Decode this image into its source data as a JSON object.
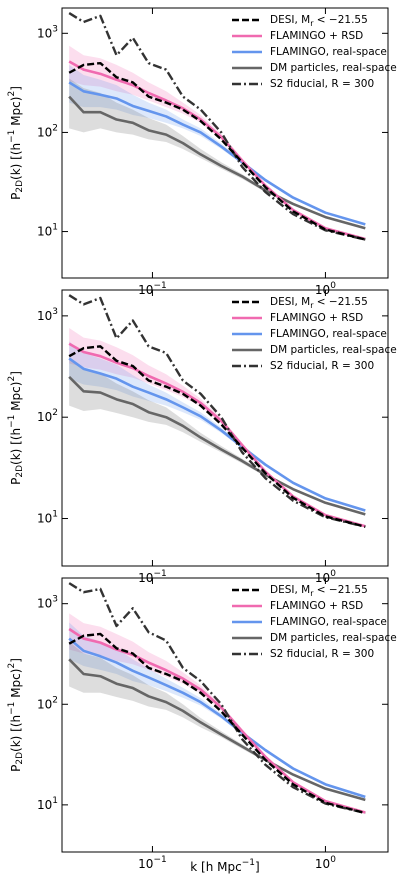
{
  "chart_data": [
    {
      "type": "line",
      "xscale": "log",
      "yscale": "log",
      "y_label": "P_{2D}(k) [(h^{−1} Mpc)^{2}]",
      "xlim": [
        0.03,
        2.3
      ],
      "ylim": [
        3.4,
        1800
      ],
      "xticks": [
        {
          "value": 0.1,
          "label": "10^{−1}"
        },
        {
          "value": 1,
          "label": "10^{0}"
        }
      ],
      "yticks": [
        {
          "value": 10,
          "label": "10^{1}"
        },
        {
          "value": 100,
          "label": "10^{2}"
        },
        {
          "value": 1000,
          "label": "10^{3}"
        }
      ],
      "x": [
        0.033,
        0.04,
        0.05,
        0.062,
        0.077,
        0.095,
        0.12,
        0.15,
        0.19,
        0.25,
        0.33,
        0.45,
        0.65,
        1.0,
        1.7
      ],
      "series": [
        {
          "name": "DESI, M_{r} < −21.55",
          "color": "#000000",
          "linestyle": "--",
          "values": [
            400,
            480,
            500,
            360,
            320,
            230,
            200,
            170,
            130,
            85,
            50,
            28,
            16,
            10.5,
            8.3
          ]
        },
        {
          "name": "FLAMINGO + RSD",
          "color": "#f06ab0",
          "linestyle": "-",
          "values": [
            520,
            430,
            390,
            340,
            300,
            250,
            210,
            175,
            135,
            90,
            52,
            29,
            16.5,
            10.8,
            8.4
          ],
          "lower": [
            330,
            300,
            290,
            260,
            240,
            210,
            180,
            155,
            125,
            85,
            50,
            28,
            16,
            10.5,
            8.2
          ],
          "upper": [
            750,
            600,
            560,
            480,
            400,
            320,
            260,
            200,
            150,
            97,
            55,
            30,
            17,
            11,
            8.6
          ]
        },
        {
          "name": "FLAMINGO, real-space",
          "color": "#6495ed",
          "linestyle": "-",
          "values": [
            320,
            260,
            240,
            220,
            185,
            165,
            145,
            120,
            100,
            72,
            50,
            33,
            22,
            15.5,
            11.8
          ],
          "lower": [
            200,
            180,
            180,
            170,
            150,
            140,
            125,
            110,
            92,
            68,
            48,
            32,
            21.5,
            15.2,
            11.6
          ],
          "upper": [
            480,
            380,
            340,
            300,
            240,
            200,
            170,
            135,
            110,
            77,
            52,
            34,
            22.5,
            15.8,
            12
          ]
        },
        {
          "name": "DM particles, real-space",
          "color": "#666666",
          "linestyle": "-",
          "values": [
            230,
            160,
            160,
            135,
            125,
            105,
            95,
            78,
            60,
            46,
            36,
            26,
            19,
            14,
            10.8
          ],
          "lower": [
            110,
            100,
            110,
            100,
            95,
            85,
            80,
            68,
            55,
            43,
            34,
            25,
            18.5,
            13.8,
            10.6
          ],
          "upper": [
            350,
            280,
            250,
            200,
            170,
            140,
            120,
            92,
            68,
            50,
            38,
            27,
            19.5,
            14.2,
            11
          ]
        },
        {
          "name": "S2 fiducial, R = 300",
          "color": "#333333",
          "linestyle": "-.",
          "values": [
            1600,
            1300,
            1500,
            600,
            900,
            500,
            430,
            230,
            170,
            100,
            45,
            25,
            15,
            10.3,
            8.3
          ]
        }
      ]
    },
    {
      "type": "line",
      "xscale": "log",
      "yscale": "log",
      "y_label": "P_{2D}(k) [(h^{−1} Mpc)^{2}]",
      "xlim": [
        0.03,
        2.3
      ],
      "ylim": [
        3.4,
        1800
      ],
      "xticks": [
        {
          "value": 0.1,
          "label": "10^{−1}"
        },
        {
          "value": 1,
          "label": "10^{0}"
        }
      ],
      "yticks": [
        {
          "value": 10,
          "label": "10^{1}"
        },
        {
          "value": 100,
          "label": "10^{2}"
        },
        {
          "value": 1000,
          "label": "10^{3}"
        }
      ],
      "x": [
        0.033,
        0.04,
        0.05,
        0.062,
        0.077,
        0.095,
        0.12,
        0.15,
        0.19,
        0.25,
        0.33,
        0.45,
        0.65,
        1.0,
        1.7
      ],
      "series": [
        {
          "name": "DESI, M_{r} < −21.55",
          "color": "#000000",
          "linestyle": "--",
          "values": [
            400,
            480,
            500,
            360,
            320,
            230,
            200,
            170,
            130,
            85,
            50,
            28,
            16,
            10.5,
            8.3
          ]
        },
        {
          "name": "FLAMINGO + RSD",
          "color": "#f06ab0",
          "linestyle": "-",
          "values": [
            530,
            440,
            400,
            345,
            305,
            255,
            215,
            178,
            138,
            92,
            53,
            29,
            16.5,
            10.8,
            8.4
          ],
          "lower": [
            340,
            310,
            295,
            265,
            245,
            215,
            185,
            158,
            127,
            86,
            50,
            28,
            16,
            10.5,
            8.2
          ],
          "upper": [
            760,
            610,
            570,
            490,
            410,
            325,
            265,
            205,
            152,
            98,
            56,
            30,
            17,
            11,
            8.6
          ]
        },
        {
          "name": "FLAMINGO, real-space",
          "color": "#6495ed",
          "linestyle": "-",
          "values": [
            380,
            300,
            270,
            240,
            200,
            175,
            150,
            125,
            102,
            74,
            51,
            34,
            22.5,
            15.8,
            12
          ],
          "lower": [
            240,
            210,
            200,
            185,
            160,
            145,
            130,
            112,
            94,
            70,
            49,
            33,
            22,
            15.5,
            11.8
          ],
          "upper": [
            560,
            430,
            380,
            330,
            260,
            210,
            175,
            140,
            112,
            79,
            53,
            35,
            23,
            16.1,
            12.2
          ]
        },
        {
          "name": "DM particles, real-space",
          "color": "#666666",
          "linestyle": "-",
          "values": [
            250,
            180,
            175,
            150,
            135,
            112,
            100,
            82,
            63,
            48,
            37,
            27,
            19.5,
            14.3,
            11
          ],
          "lower": [
            130,
            115,
            120,
            110,
            100,
            90,
            84,
            71,
            57,
            45,
            35,
            26,
            19,
            14,
            10.8
          ],
          "upper": [
            380,
            300,
            270,
            215,
            180,
            147,
            125,
            95,
            70,
            52,
            39,
            28,
            20,
            14.6,
            11.2
          ]
        },
        {
          "name": "S2 fiducial, R = 300",
          "color": "#333333",
          "linestyle": "-.",
          "values": [
            1600,
            1300,
            1500,
            600,
            900,
            500,
            430,
            230,
            170,
            100,
            45,
            25,
            15,
            10.3,
            8.3
          ]
        }
      ]
    },
    {
      "type": "line",
      "xscale": "log",
      "yscale": "log",
      "y_label": "P_{2D}(k) [(h^{−1} Mpc)^{2}]",
      "x_label": "k [h Mpc^{−1}]",
      "xlim": [
        0.03,
        2.3
      ],
      "ylim": [
        3.4,
        1800
      ],
      "xticks": [
        {
          "value": 0.1,
          "label": "10^{−1}"
        },
        {
          "value": 1,
          "label": "10^{0}"
        }
      ],
      "yticks": [
        {
          "value": 10,
          "label": "10^{1}"
        },
        {
          "value": 100,
          "label": "10^{2}"
        },
        {
          "value": 1000,
          "label": "10^{3}"
        }
      ],
      "x": [
        0.033,
        0.04,
        0.05,
        0.062,
        0.077,
        0.095,
        0.12,
        0.15,
        0.19,
        0.25,
        0.33,
        0.45,
        0.65,
        1.0,
        1.7
      ],
      "series": [
        {
          "name": "DESI, M_{r} < −21.55",
          "color": "#000000",
          "linestyle": "--",
          "values": [
            400,
            480,
            500,
            360,
            320,
            230,
            200,
            170,
            130,
            85,
            50,
            28,
            16,
            10.5,
            8.3
          ]
        },
        {
          "name": "FLAMINGO + RSD",
          "color": "#f06ab0",
          "linestyle": "-",
          "values": [
            560,
            450,
            410,
            350,
            310,
            260,
            218,
            180,
            140,
            93,
            54,
            30,
            16.8,
            10.9,
            8.4
          ],
          "lower": [
            350,
            320,
            300,
            270,
            250,
            220,
            188,
            160,
            128,
            87,
            51,
            28.5,
            16.2,
            10.6,
            8.2
          ],
          "upper": [
            800,
            640,
            590,
            500,
            420,
            330,
            270,
            208,
            154,
            99,
            57,
            31,
            17.3,
            11.2,
            8.6
          ]
        },
        {
          "name": "FLAMINGO, real-space",
          "color": "#6495ed",
          "linestyle": "-",
          "values": [
            450,
            340,
            300,
            260,
            215,
            185,
            155,
            130,
            105,
            76,
            52,
            35,
            23,
            16,
            12
          ],
          "lower": [
            280,
            240,
            220,
            200,
            170,
            155,
            135,
            116,
            97,
            72,
            50,
            34,
            22.5,
            15.7,
            11.8
          ],
          "upper": [
            650,
            480,
            420,
            360,
            280,
            225,
            180,
            146,
            115,
            81,
            54,
            36,
            23.5,
            16.3,
            12.2
          ]
        },
        {
          "name": "DM particles, real-space",
          "color": "#666666",
          "linestyle": "-",
          "values": [
            280,
            200,
            190,
            160,
            145,
            120,
            105,
            86,
            66,
            50,
            38,
            28,
            20,
            14.5,
            11.2
          ],
          "lower": [
            150,
            130,
            130,
            118,
            108,
            95,
            88,
            74,
            59,
            47,
            36,
            27,
            19.5,
            14.2,
            11
          ],
          "upper": [
            420,
            320,
            290,
            230,
            195,
            155,
            130,
            100,
            73,
            54,
            40,
            29,
            20.5,
            14.8,
            11.4
          ]
        },
        {
          "name": "S2 fiducial, R = 300",
          "color": "#333333",
          "linestyle": "-.",
          "values": [
            1600,
            1300,
            1400,
            600,
            900,
            520,
            430,
            230,
            170,
            100,
            45,
            25,
            15,
            10.3,
            8.3
          ]
        }
      ]
    }
  ]
}
